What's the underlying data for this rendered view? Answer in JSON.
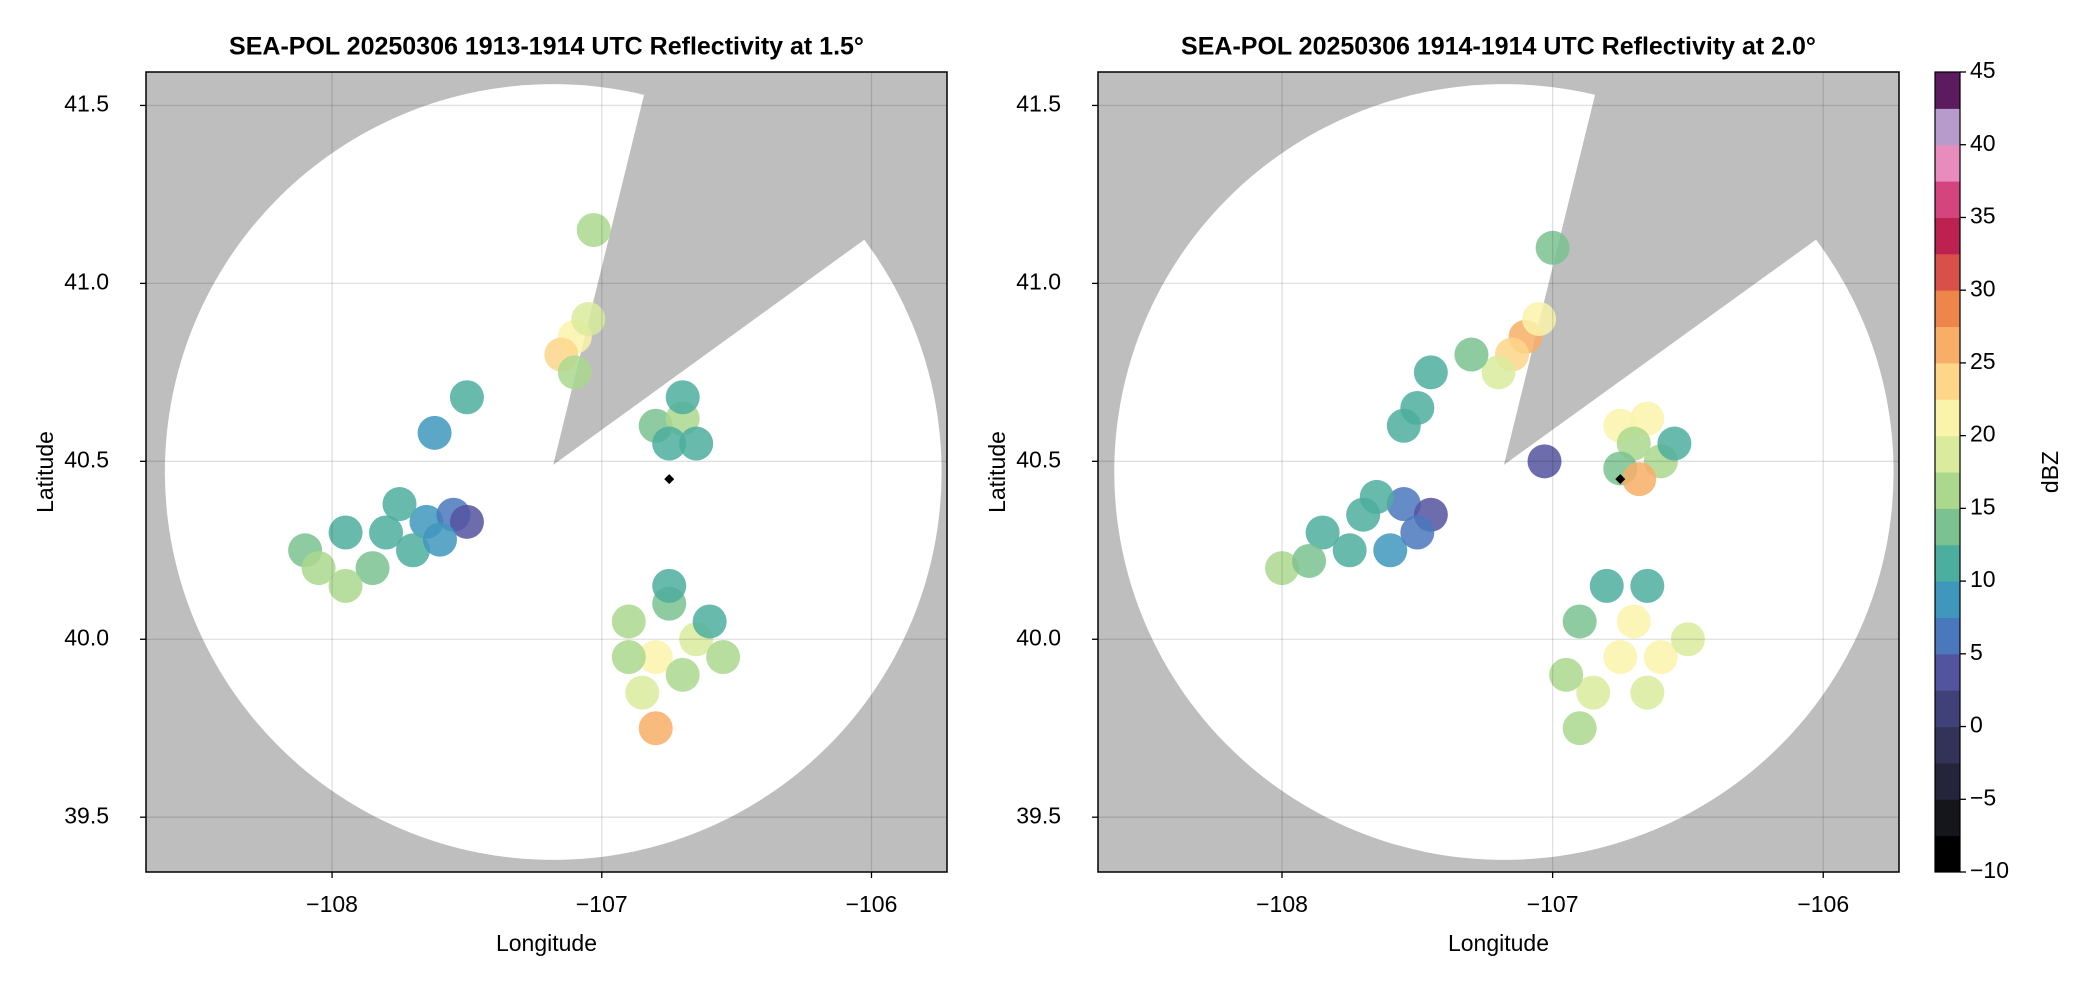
{
  "chart_data": [
    {
      "type": "scatter",
      "title": "SEA-POL 20250306 1913-1914 UTC Reflectivity at 1.5°",
      "x_label": "Longitude",
      "y_label": "Latitude",
      "xlim": [
        -108.69,
        -105.72
      ],
      "ylim": [
        39.346,
        41.594
      ],
      "xticks": [
        {
          "value": -108,
          "label": "−108"
        },
        {
          "value": -107,
          "label": "−107"
        },
        {
          "value": -106,
          "label": "−106"
        }
      ],
      "yticks": [
        39.5,
        {
          "value": 40,
          "label": "40.0"
        },
        40.5,
        {
          "value": 41,
          "label": "41.0"
        },
        41.5
      ],
      "grid": true,
      "background_color": "#bebebe",
      "coverage": {
        "center": [
          -107.18,
          40.47
        ],
        "radius_lon": 1.44,
        "radius_lat": 1.09,
        "blocked_apex": [
          -107.18,
          40.49
        ],
        "blocked_edges": [
          [
            -106.84,
            41.54
          ],
          [
            -106.05,
            41.11
          ]
        ]
      },
      "radar_marker": [
        -106.75,
        40.45
      ],
      "x": [
        -108.1,
        -107.95,
        -107.8,
        -107.65,
        -107.55,
        -107.5,
        -107.85,
        -107.7,
        -107.95,
        -108.05,
        -107.6,
        -107.75,
        -107.1,
        -107.05,
        -107.15,
        -107.1,
        -107.03,
        -107.5,
        -107.62,
        -106.8,
        -106.7,
        -106.75,
        -106.65,
        -106.7,
        -106.9,
        -106.75,
        -106.65,
        -106.8,
        -106.7,
        -106.85,
        -106.8,
        -106.75,
        -106.6,
        -106.9,
        -106.55
      ],
      "y": [
        40.25,
        40.3,
        40.3,
        40.33,
        40.35,
        40.33,
        40.2,
        40.25,
        40.15,
        40.2,
        40.28,
        40.38,
        40.85,
        40.9,
        40.8,
        40.75,
        41.15,
        40.68,
        40.58,
        40.6,
        40.62,
        40.55,
        40.55,
        40.68,
        40.05,
        40.1,
        40.0,
        39.95,
        39.9,
        39.85,
        39.75,
        40.15,
        40.05,
        39.95,
        39.95
      ],
      "values": [
        14,
        12,
        10,
        9,
        6,
        4,
        14,
        11,
        15,
        16,
        8,
        12,
        22,
        18,
        24,
        16,
        15,
        10,
        8,
        14,
        16,
        10,
        12,
        12,
        16,
        14,
        18,
        20,
        17,
        18,
        26,
        10,
        12,
        15,
        15
      ]
    },
    {
      "type": "scatter",
      "title": "SEA-POL 20250306 1914-1914 UTC Reflectivity at 2.0°",
      "x_label": "Longitude",
      "y_label": "Latitude",
      "xlim": [
        -108.68,
        -105.72
      ],
      "ylim": [
        39.346,
        41.594
      ],
      "xticks": [
        {
          "value": -108,
          "label": "−108"
        },
        {
          "value": -107,
          "label": "−107"
        },
        {
          "value": -106,
          "label": "−106"
        }
      ],
      "yticks": [
        39.5,
        {
          "value": 40,
          "label": "40.0"
        },
        40.5,
        {
          "value": 41,
          "label": "41.0"
        },
        41.5
      ],
      "grid": true,
      "background_color": "#bebebe",
      "coverage": {
        "center": [
          -107.18,
          40.47
        ],
        "radius_lon": 1.44,
        "radius_lat": 1.09,
        "blocked_apex": [
          -107.18,
          40.49
        ],
        "blocked_edges": [
          [
            -106.84,
            41.54
          ],
          [
            -106.05,
            41.11
          ]
        ]
      },
      "radar_marker": [
        -106.75,
        40.45
      ],
      "x": [
        -108.0,
        -107.85,
        -107.7,
        -107.55,
        -107.45,
        -107.75,
        -107.6,
        -107.9,
        -107.65,
        -107.5,
        -107.1,
        -107.15,
        -107.05,
        -107.2,
        -107.3,
        -107.45,
        -107.5,
        -107.55,
        -107.0,
        -106.75,
        -106.65,
        -106.7,
        -106.6,
        -106.75,
        -106.68,
        -106.55,
        -106.8,
        -106.65,
        -106.9,
        -106.75,
        -106.6,
        -106.5,
        -106.85,
        -106.95,
        -106.65,
        -106.9,
        -106.7,
        -107.03
      ],
      "y": [
        40.2,
        40.3,
        40.35,
        40.38,
        40.35,
        40.25,
        40.25,
        40.22,
        40.4,
        40.3,
        40.85,
        40.8,
        40.9,
        40.75,
        40.8,
        40.75,
        40.65,
        40.6,
        41.1,
        40.6,
        40.62,
        40.55,
        40.5,
        40.48,
        40.45,
        40.55,
        40.15,
        40.15,
        40.05,
        39.95,
        39.95,
        40.0,
        39.85,
        39.9,
        39.85,
        39.75,
        40.05,
        40.5
      ],
      "values": [
        15,
        12,
        10,
        7,
        4,
        12,
        9,
        14,
        10,
        6,
        25,
        24,
        20,
        18,
        14,
        12,
        10,
        10,
        14,
        20,
        22,
        16,
        15,
        14,
        26,
        12,
        12,
        12,
        14,
        20,
        22,
        18,
        18,
        16,
        18,
        16,
        20,
        4
      ]
    },
    {
      "type": "colorbar",
      "label": "dBZ",
      "ylim": [
        -10,
        45
      ],
      "yticks": [
        {
          "value": -10,
          "label": "−10"
        },
        {
          "value": -5,
          "label": "−5"
        },
        0,
        5,
        10,
        15,
        20,
        25,
        30,
        35,
        40,
        45
      ],
      "colors": [
        "#000000",
        "#15151c",
        "#24243a",
        "#33335a",
        "#41417a",
        "#5354a0",
        "#4a78bc",
        "#3f97be",
        "#4cae9e",
        "#7bc290",
        "#acd88e",
        "#dbeb9e",
        "#faf3aa",
        "#fdd68a",
        "#f8ae66",
        "#ee864c",
        "#d9504a",
        "#bd2150",
        "#d4457f",
        "#e88bbd",
        "#b79bcc",
        "#5c1b5e"
      ]
    }
  ]
}
